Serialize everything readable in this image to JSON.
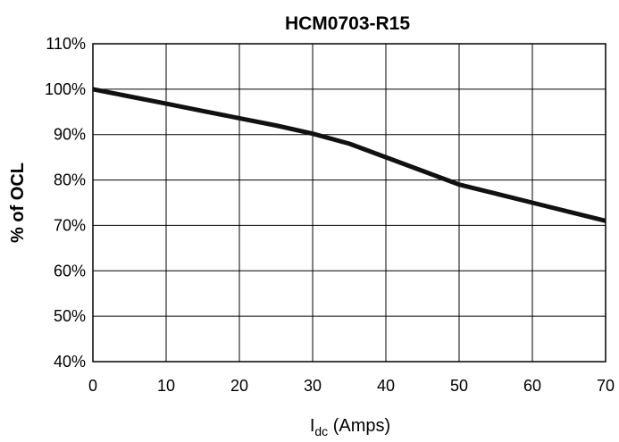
{
  "chart_data": {
    "type": "line",
    "title": "HCM0703-R15",
    "xlabel": {
      "main": "I",
      "subscript": "dc",
      "rest": " (Amps)"
    },
    "ylabel": "% of OCL",
    "xlim": [
      0,
      70
    ],
    "ylim": [
      40,
      110
    ],
    "x_ticks": [
      "0",
      "10",
      "20",
      "30",
      "40",
      "50",
      "60",
      "70"
    ],
    "y_ticks": [
      "40%",
      "50%",
      "60%",
      "70%",
      "80%",
      "90%",
      "100%",
      "110%"
    ],
    "grid": true,
    "legend": "none",
    "colors": {
      "line": "#111111",
      "grid": "#000000",
      "background": "#ffffff"
    },
    "series": [
      {
        "x": [
          0,
          5,
          10,
          15,
          20,
          25,
          30,
          35,
          40,
          45,
          50,
          55,
          60,
          65,
          70
        ],
        "y": [
          100,
          98.4,
          96.8,
          95.2,
          93.6,
          92,
          90.2,
          88,
          85,
          82,
          79,
          77,
          75,
          73,
          71
        ]
      }
    ]
  }
}
